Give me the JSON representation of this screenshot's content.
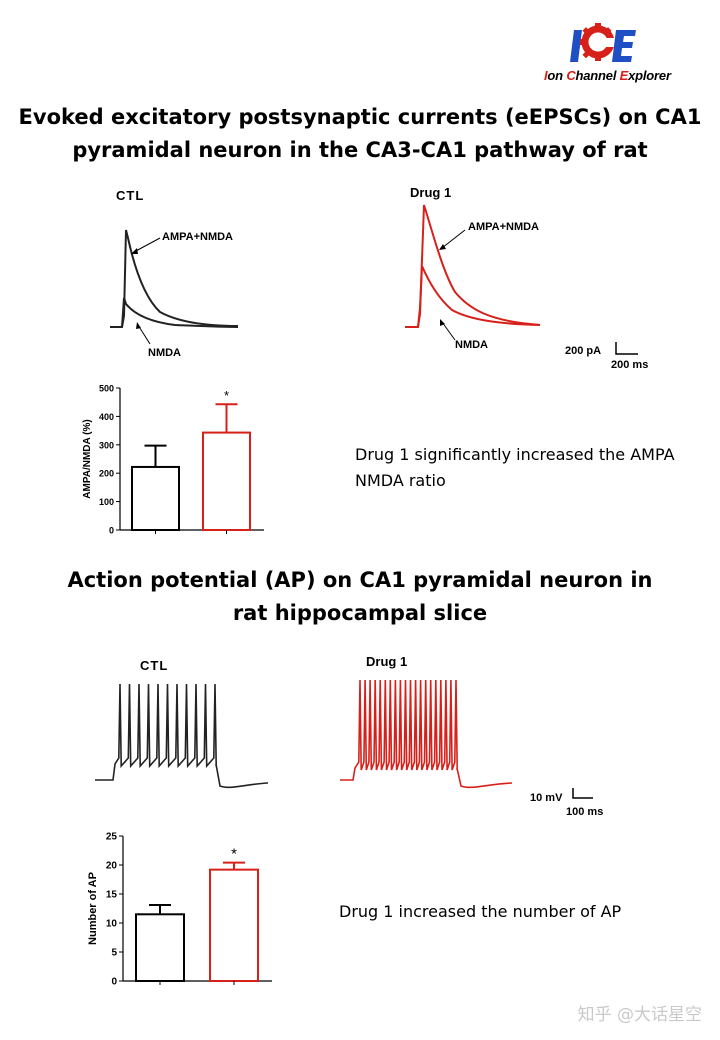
{
  "logo": {
    "text": "Ion Channel Explorer",
    "mark": "ICE"
  },
  "section1": {
    "title_line1": "Evoked excitatory postsynaptic currents (eEPSCs) on CA1",
    "title_line2": "pyramidal neuron in the CA3-CA1 pathway of rat",
    "trace_ctl_label": "CTL",
    "trace_drug_label": "Drug 1",
    "annotation_ampa_nmda": "AMPA+NMDA",
    "annotation_nmda": "NMDA",
    "scale_y": "200 pA",
    "scale_x": "200 ms",
    "description": "Drug 1 significantly increased the AMPA NMDA ratio",
    "significance": "*"
  },
  "section2": {
    "title_line1": "Action potential (AP) on CA1 pyramidal neuron in",
    "title_line2": "rat hippocampal slice",
    "trace_ctl_label": "CTL",
    "trace_drug_label": "Drug 1",
    "scale_y": "10 mV",
    "scale_x": "100 ms",
    "description": "Drug 1 increased the number of AP",
    "significance": "*"
  },
  "colors": {
    "ctl": "#000000",
    "drug": "#d8201a"
  },
  "watermark": "知乎 @大话星空",
  "chart_data": [
    {
      "type": "bar",
      "categories": [
        "",
        ""
      ],
      "series": [
        {
          "values": [
            222,
            343
          ]
        }
      ],
      "errors": [
        75,
        100
      ],
      "colors": [
        "#000000",
        "#d8201a"
      ],
      "ylabel": "AMPA/NMDA (%)",
      "ylim": [
        0,
        500
      ],
      "yticks": [
        0,
        100,
        200,
        300,
        400,
        500
      ],
      "annotation": "*"
    },
    {
      "type": "bar",
      "categories": [
        "",
        ""
      ],
      "series": [
        {
          "values": [
            11.5,
            19.2
          ]
        }
      ],
      "errors": [
        1.6,
        1.2
      ],
      "colors": [
        "#000000",
        "#d8201a"
      ],
      "ylabel": "Number of AP",
      "ylim": [
        0,
        25
      ],
      "yticks": [
        0,
        5,
        10,
        15,
        20,
        25
      ],
      "annotation": "*"
    }
  ]
}
